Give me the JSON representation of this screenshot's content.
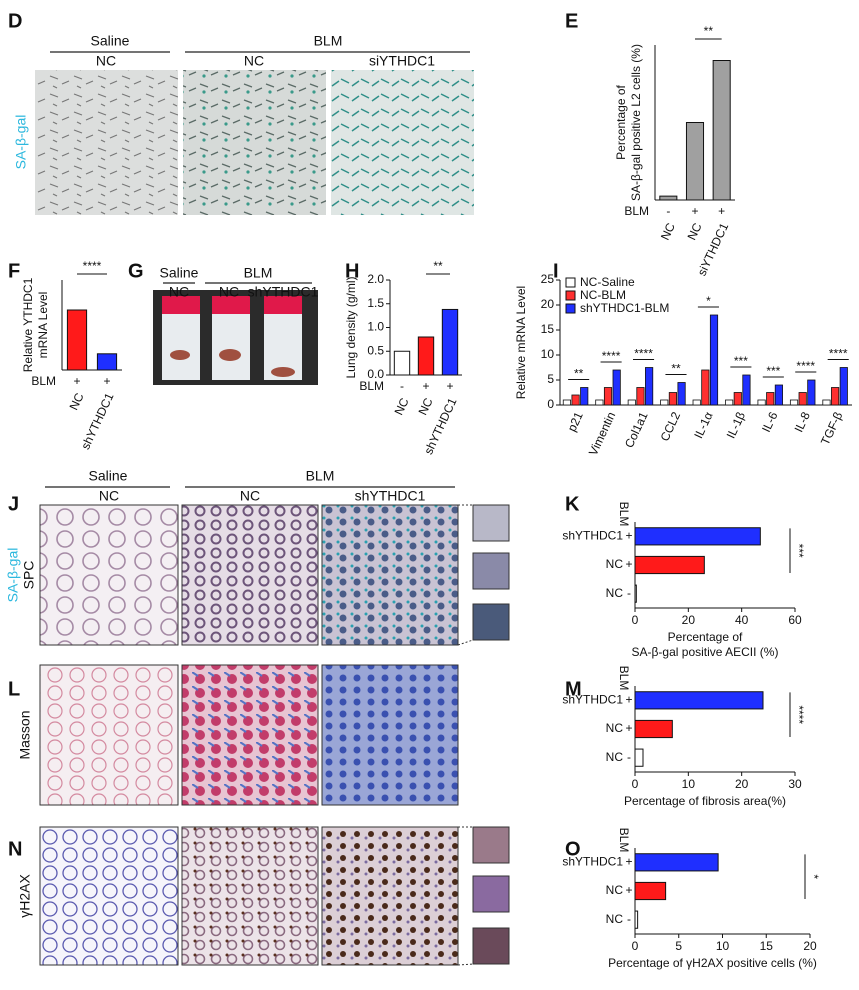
{
  "panel_letters": [
    "D",
    "E",
    "F",
    "G",
    "H",
    "I",
    "J",
    "K",
    "L",
    "M",
    "N",
    "O"
  ],
  "panel_d": {
    "groups": [
      "Saline",
      "BLM"
    ],
    "columns": [
      "NC",
      "NC",
      "siYTHDC1"
    ],
    "stain": "SA-β-gal"
  },
  "panel_g": {
    "groups": [
      "Saline",
      "BLM"
    ],
    "columns": [
      "NC",
      "NC",
      "shYTHDC1"
    ]
  },
  "panel_j": {
    "groups": [
      "Saline",
      "BLM"
    ],
    "columns": [
      "NC",
      "NC",
      "shYTHDC1"
    ],
    "stain": [
      "SA-β-gal",
      "SPC"
    ]
  },
  "panel_l": {
    "stain": "Masson"
  },
  "panel_n": {
    "stain": "γH2AX"
  },
  "chart_data": [
    {
      "type": "bar",
      "ylabel": [
        "Percentage of",
        "SA-β-gal positive L2 cells  (%)"
      ],
      "categories": [
        "NC",
        "NC",
        "siYTHDC1"
      ],
      "condition_label": "BLM",
      "conditions": [
        "-",
        "+",
        "+"
      ],
      "values": [
        2,
        40,
        72
      ],
      "colors": [
        "#a0a0a0",
        "#a0a0a0",
        "#a0a0a0"
      ],
      "ylim": [
        0,
        80
      ],
      "significance": "**"
    },
    {
      "type": "bar",
      "ylabel": [
        "Relative YTHDC1",
        "mRNA Level"
      ],
      "categories": [
        "NC",
        "shYTHDC1"
      ],
      "condition_label": "BLM",
      "conditions": [
        "+",
        "+"
      ],
      "values": [
        1.0,
        0.27
      ],
      "colors": [
        "#ff1a1a",
        "#1f2fff"
      ],
      "ylim": [
        0,
        1.5
      ],
      "significance": "****"
    },
    {
      "type": "bar",
      "ylabel": [
        "Lung density (g/ml)"
      ],
      "categories": [
        "NC",
        "NC",
        "shYTHDC1"
      ],
      "condition_label": "BLM",
      "conditions": [
        "-",
        "+",
        "+"
      ],
      "values": [
        0.5,
        0.8,
        1.38
      ],
      "colors": [
        "#ffffff",
        "#ff1a1a",
        "#1f2fff"
      ],
      "ylim": [
        0,
        2
      ],
      "yticks": [
        {
          "value": 0,
          "label": "0.0"
        },
        {
          "value": 0.5,
          "label": "0.5"
        },
        {
          "value": 1,
          "label": "1.0"
        },
        {
          "value": 1.5,
          "label": "1.5"
        },
        {
          "value": 2,
          "label": "2.0"
        }
      ],
      "significance": "**"
    },
    {
      "type": "bar",
      "ylabel": [
        "Relative mRNA Level"
      ],
      "categories": [
        "p21",
        "Vimentin",
        "Col1a1",
        "CCL2",
        "IL-1α",
        "IL-1β",
        "IL-6",
        "IL-8",
        "TGF-β"
      ],
      "series": [
        {
          "name": "NC-Saline",
          "color": "#ffffff",
          "values": [
            1,
            1,
            1,
            1,
            1,
            1,
            1,
            1,
            1
          ]
        },
        {
          "name": "NC-BLM",
          "color": "#ff3030",
          "values": [
            2,
            3.5,
            3.5,
            2.5,
            7,
            2.5,
            2.5,
            2.5,
            3.5
          ]
        },
        {
          "name": "shYTHDC1-BLM",
          "color": "#1f2fff",
          "values": [
            3.5,
            7,
            7.5,
            4.5,
            18,
            6,
            4,
            5,
            7.5
          ]
        }
      ],
      "ylim": [
        0,
        25
      ],
      "yticks": [
        0,
        5,
        10,
        15,
        20,
        25
      ],
      "significance": [
        "**",
        "****",
        "****",
        "**",
        "*",
        "***",
        "***",
        "****",
        "****"
      ]
    },
    {
      "type": "bar",
      "orientation": "horizontal",
      "xlabel": [
        "Percentage of",
        "SA-β-gal positive AECII (%)"
      ],
      "categories": [
        "NC",
        "NC",
        "shYTHDC1"
      ],
      "condition_label": "BLM",
      "conditions": [
        "-",
        "+",
        "+"
      ],
      "values": [
        0.5,
        26,
        47
      ],
      "colors": [
        "#ffffff",
        "#ff1a1a",
        "#1f2fff"
      ],
      "xlim": [
        0,
        60
      ],
      "xticks": [
        0,
        20,
        40,
        60
      ],
      "significance": "***"
    },
    {
      "type": "bar",
      "orientation": "horizontal",
      "xlabel": [
        "Percentage of fibrosis area(%)"
      ],
      "categories": [
        "NC",
        "NC",
        "shYTHDC1"
      ],
      "condition_label": "BLM",
      "conditions": [
        "-",
        "+",
        "+"
      ],
      "values": [
        1.5,
        7,
        24
      ],
      "colors": [
        "#ffffff",
        "#ff1a1a",
        "#1f2fff"
      ],
      "xlim": [
        0,
        30
      ],
      "xticks": [
        0,
        10,
        20,
        30
      ],
      "significance": "****"
    },
    {
      "type": "bar",
      "orientation": "horizontal",
      "xlabel": [
        "Percentage of γH2AX positive cells  (%)"
      ],
      "categories": [
        "NC",
        "NC",
        "shYTHDC1"
      ],
      "condition_label": "BLM",
      "conditions": [
        "-",
        "+",
        "+"
      ],
      "values": [
        0.3,
        3.5,
        9.5
      ],
      "colors": [
        "#ffffff",
        "#ff1a1a",
        "#1f2fff"
      ],
      "xlim": [
        0,
        20
      ],
      "xticks": [
        0,
        5,
        10,
        15,
        20
      ],
      "significance": "*"
    }
  ]
}
